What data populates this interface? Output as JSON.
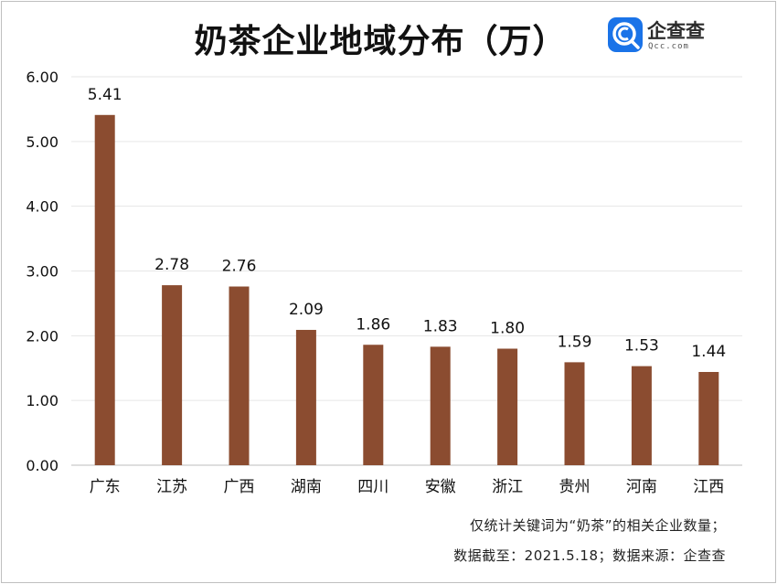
{
  "title": "奶茶企业地域分布（万）",
  "logo": {
    "name": "企查查",
    "sub": "Qcc.com",
    "icon": "qcc-magnifier-logo",
    "color": "#1a73e8"
  },
  "notes": {
    "line1": "仅统计关键词为“奶茶”的相关企业数量；",
    "line2": "数据截至：2021.5.18；数据来源：企查查"
  },
  "chart_data": {
    "type": "bar",
    "title": "奶茶企业地域分布（万）",
    "categories": [
      "广东",
      "江苏",
      "广西",
      "湖南",
      "四川",
      "安徽",
      "浙江",
      "贵州",
      "河南",
      "江西"
    ],
    "values": [
      5.41,
      2.78,
      2.76,
      2.09,
      1.86,
      1.83,
      1.8,
      1.59,
      1.53,
      1.44
    ],
    "data_labels": [
      "5.41",
      "2.78",
      "2.76",
      "2.09",
      "1.86",
      "1.83",
      "1.80",
      "1.59",
      "1.53",
      "1.44"
    ],
    "ylim": [
      0,
      6
    ],
    "yticks": [
      "0.00",
      "1.00",
      "2.00",
      "3.00",
      "4.00",
      "5.00",
      "6.00"
    ],
    "grid": true,
    "bar_color": "#8b4c30",
    "grid_color": "#e6e6e6"
  }
}
